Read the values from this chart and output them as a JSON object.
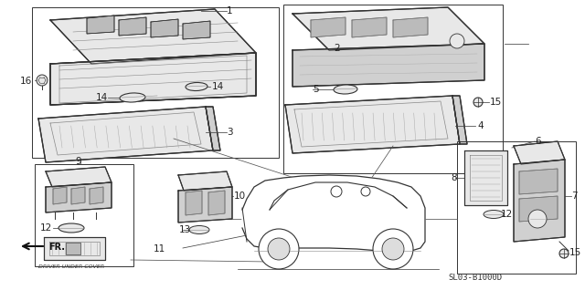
{
  "bg_color": "#ffffff",
  "fig_width": 6.4,
  "fig_height": 3.18,
  "diagram_code": "SL03-B1000D",
  "line_color": "#333333",
  "fill_light": "#e8e8e8",
  "fill_mid": "#d0d0d0",
  "fill_dark": "#bbbbbb"
}
